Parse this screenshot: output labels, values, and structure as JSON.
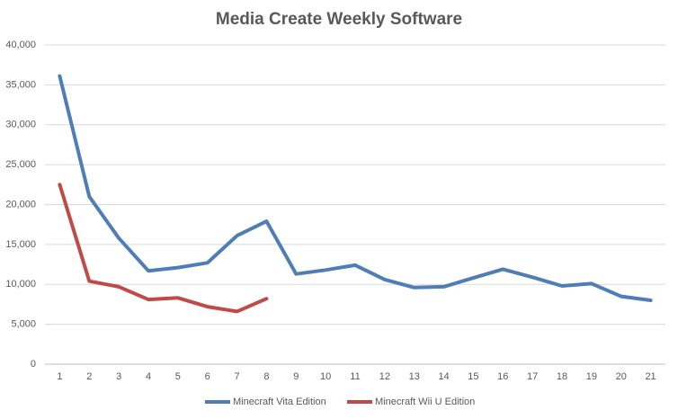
{
  "chart_data": {
    "type": "line",
    "title": "Media Create Weekly Software",
    "categories": [
      "1",
      "2",
      "3",
      "4",
      "5",
      "6",
      "7",
      "8",
      "9",
      "10",
      "11",
      "12",
      "13",
      "14",
      "15",
      "16",
      "17",
      "18",
      "19",
      "20",
      "21"
    ],
    "series": [
      {
        "name": "Minecraft Vita Edition",
        "color": "#4f7db5",
        "values": [
          36100,
          21000,
          15800,
          11700,
          12100,
          12700,
          16100,
          17900,
          11300,
          11800,
          12400,
          10600,
          9600,
          9700,
          10800,
          11900,
          10900,
          9800,
          10100,
          8500,
          8000
        ]
      },
      {
        "name": "Minecraft Wii U Edition",
        "color": "#be4b48",
        "values": [
          22500,
          10400,
          9700,
          8100,
          8300,
          7200,
          6600,
          8200,
          null,
          null,
          null,
          null,
          null,
          null,
          null,
          null,
          null,
          null,
          null,
          null,
          null
        ]
      }
    ],
    "ylim": [
      0,
      40000
    ],
    "yticks": [
      0,
      {
        "value": 5000,
        "label": "5,000"
      },
      {
        "value": 10000,
        "label": "10,000"
      },
      {
        "value": 15000,
        "label": "15,000"
      },
      {
        "value": 20000,
        "label": "20,000"
      },
      {
        "value": 25000,
        "label": "25,000"
      },
      {
        "value": 30000,
        "label": "30,000"
      },
      {
        "value": 35000,
        "label": "35,000"
      },
      {
        "value": 40000,
        "label": "40,000"
      }
    ],
    "grid": true,
    "legend": "bottom"
  }
}
